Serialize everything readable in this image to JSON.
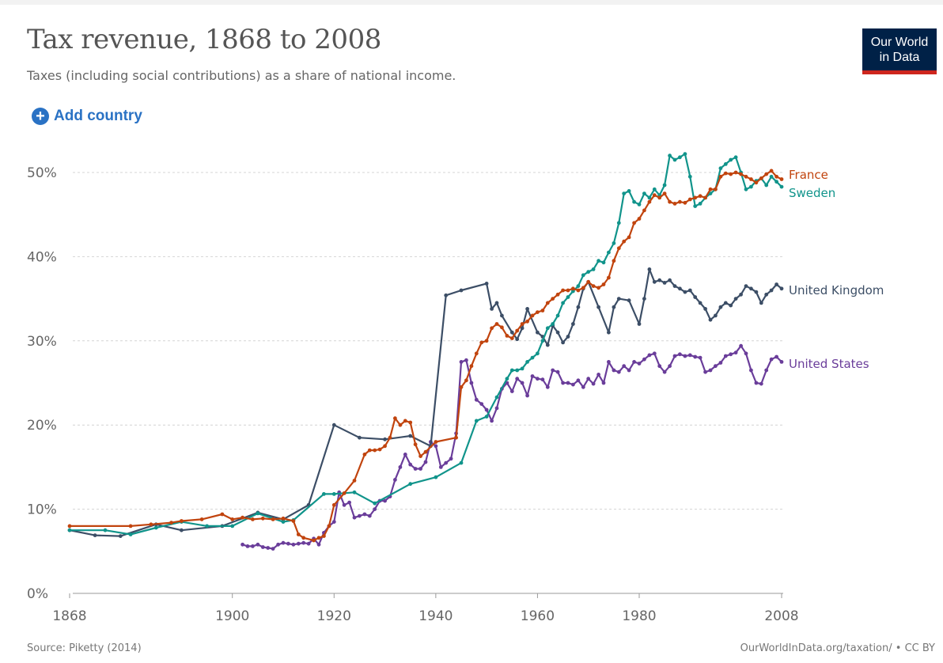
{
  "header": {
    "title": "Tax revenue, 1868 to 2008",
    "subtitle": "Taxes (including social contributions) as a share of national income.",
    "logo_line1": "Our World",
    "logo_line2": "in Data"
  },
  "controls": {
    "add_country_label": "Add country",
    "add_icon": "plus-circle-icon"
  },
  "footer": {
    "source": "Source: Piketty (2014)",
    "link": "OurWorldInData.org/taxation/ • CC BY"
  },
  "colors": {
    "France": "#c1440e",
    "Sweden": "#11948b",
    "United Kingdom": "#3c4e66",
    "United States": "#6a3d9a",
    "brand_bg": "#002147",
    "brand_accent": "#ce261e",
    "link": "#2a72c4"
  },
  "chart_data": {
    "type": "line",
    "title": "Tax revenue, 1868 to 2008",
    "subtitle": "Taxes (including social contributions) as a share of national income.",
    "xlabel": "",
    "ylabel": "",
    "xlim": [
      1866,
      2012
    ],
    "ylim": [
      0,
      50
    ],
    "x_ticks": [
      1868,
      1900,
      1920,
      1940,
      1960,
      1980,
      2008
    ],
    "y_ticks": [
      0,
      10,
      20,
      30,
      40,
      50
    ],
    "y_tick_labels": [
      "0%",
      "10%",
      "20%",
      "30%",
      "40%",
      "50%"
    ],
    "grid": "horizontal dotted",
    "legend": "line-end labels on right",
    "series": [
      {
        "name": "France",
        "x": [
          1868,
          1880,
          1884,
          1888,
          1890,
          1894,
          1898,
          1900,
          1902,
          1904,
          1906,
          1908,
          1910,
          1912,
          1913,
          1914,
          1916,
          1917,
          1918,
          1919,
          1920,
          1922,
          1924,
          1926,
          1927,
          1928,
          1929,
          1930,
          1931,
          1932,
          1933,
          1934,
          1935,
          1936,
          1937,
          1938,
          1940,
          1944,
          1945,
          1946,
          1947,
          1948,
          1949,
          1950,
          1951,
          1952,
          1953,
          1954,
          1955,
          1956,
          1957,
          1958,
          1959,
          1960,
          1961,
          1962,
          1963,
          1964,
          1965,
          1966,
          1967,
          1968,
          1969,
          1970,
          1971,
          1972,
          1973,
          1974,
          1975,
          1976,
          1977,
          1978,
          1979,
          1980,
          1981,
          1982,
          1983,
          1984,
          1985,
          1986,
          1987,
          1988,
          1989,
          1990,
          1991,
          1992,
          1993,
          1994,
          1995,
          1996,
          1997,
          1998,
          1999,
          2000,
          2001,
          2002,
          2003,
          2004,
          2005,
          2006,
          2007,
          2008
        ],
        "y": [
          8.0,
          8.0,
          8.2,
          8.4,
          8.6,
          8.8,
          9.4,
          8.8,
          9.0,
          8.8,
          8.9,
          8.8,
          8.9,
          8.6,
          7.0,
          6.6,
          6.3,
          6.6,
          6.8,
          8.0,
          10.5,
          11.9,
          13.4,
          16.5,
          17.0,
          17.0,
          17.1,
          17.5,
          18.5,
          20.8,
          20.0,
          20.5,
          20.3,
          17.7,
          16.3,
          16.8,
          18.0,
          18.5,
          24.5,
          25.3,
          27.0,
          28.5,
          29.8,
          30.0,
          31.5,
          32.0,
          31.6,
          30.6,
          30.3,
          31.2,
          32.0,
          32.3,
          33.0,
          33.4,
          33.6,
          34.5,
          35.0,
          35.5,
          36.0,
          36.0,
          36.2,
          36.0,
          36.3,
          37.0,
          36.5,
          36.3,
          36.7,
          37.5,
          39.5,
          41.0,
          41.8,
          42.3,
          44.0,
          44.5,
          45.5,
          46.5,
          47.3,
          47.0,
          47.5,
          46.5,
          46.3,
          46.5,
          46.4,
          46.8,
          47.0,
          47.2,
          47.0,
          48.0,
          48.0,
          49.5,
          49.9,
          49.8,
          50.0,
          49.8,
          49.5,
          49.2,
          48.8,
          49.3,
          49.8,
          50.2,
          49.5,
          49.2
        ]
      },
      {
        "name": "Sweden",
        "x": [
          1868,
          1875,
          1880,
          1885,
          1890,
          1895,
          1900,
          1905,
          1910,
          1912,
          1918,
          1920,
          1924,
          1928,
          1935,
          1940,
          1945,
          1948,
          1950,
          1952,
          1954,
          1955,
          1956,
          1957,
          1958,
          1959,
          1960,
          1961,
          1962,
          1963,
          1964,
          1965,
          1966,
          1967,
          1968,
          1969,
          1970,
          1971,
          1972,
          1973,
          1974,
          1975,
          1976,
          1977,
          1978,
          1979,
          1980,
          1981,
          1982,
          1983,
          1984,
          1985,
          1986,
          1987,
          1988,
          1989,
          1990,
          1991,
          1992,
          1993,
          1994,
          1995,
          1996,
          1997,
          1998,
          1999,
          2000,
          2001,
          2002,
          2003,
          2004,
          2005,
          2006,
          2007,
          2008
        ],
        "y": [
          7.5,
          7.5,
          7.0,
          7.8,
          8.5,
          8.0,
          8.0,
          9.5,
          8.5,
          8.7,
          11.8,
          11.8,
          12.0,
          10.7,
          13.0,
          13.8,
          15.5,
          20.5,
          21.0,
          23.3,
          25.5,
          26.5,
          26.5,
          26.7,
          27.5,
          28.0,
          28.5,
          30.0,
          31.5,
          32.0,
          33.0,
          34.5,
          35.2,
          35.9,
          36.5,
          37.8,
          38.2,
          38.5,
          39.5,
          39.3,
          40.5,
          41.6,
          44.0,
          47.5,
          47.8,
          46.5,
          46.2,
          47.5,
          47.0,
          48.0,
          47.3,
          48.5,
          52.0,
          51.5,
          51.8,
          52.2,
          49.5,
          46.0,
          46.3,
          47.0,
          47.5,
          48.0,
          50.5,
          51.0,
          51.5,
          51.8,
          50.0,
          48.0,
          48.3,
          49.0,
          49.3,
          48.5,
          49.5,
          48.9,
          48.3
        ]
      },
      {
        "name": "United Kingdom",
        "x": [
          1868,
          1873,
          1878,
          1885,
          1890,
          1898,
          1905,
          1910,
          1915,
          1920,
          1925,
          1930,
          1935,
          1939,
          1942,
          1945,
          1950,
          1951,
          1952,
          1953,
          1955,
          1956,
          1957,
          1958,
          1960,
          1961,
          1962,
          1963,
          1964,
          1965,
          1966,
          1967,
          1968,
          1969,
          1970,
          1972,
          1974,
          1975,
          1976,
          1978,
          1980,
          1981,
          1982,
          1983,
          1984,
          1985,
          1986,
          1987,
          1988,
          1989,
          1990,
          1991,
          1992,
          1993,
          1994,
          1995,
          1996,
          1997,
          1998,
          1999,
          2000,
          2001,
          2002,
          2003,
          2004,
          2005,
          2006,
          2007,
          2008
        ],
        "y": [
          7.5,
          6.9,
          6.8,
          8.2,
          7.5,
          8.0,
          9.6,
          8.8,
          10.5,
          20.0,
          18.5,
          18.3,
          18.7,
          17.5,
          35.4,
          36.0,
          36.8,
          33.8,
          34.5,
          33.0,
          31.0,
          30.2,
          31.5,
          33.8,
          31.0,
          30.5,
          29.5,
          31.8,
          31.0,
          29.8,
          30.5,
          32.0,
          34.0,
          36.2,
          37.0,
          34.0,
          31.0,
          34.0,
          35.0,
          34.8,
          32.0,
          35.0,
          38.5,
          37.0,
          37.2,
          36.9,
          37.2,
          36.5,
          36.2,
          35.8,
          36.0,
          35.2,
          34.5,
          33.8,
          32.5,
          33.0,
          34.0,
          34.5,
          34.2,
          35.0,
          35.5,
          36.5,
          36.2,
          35.8,
          34.5,
          35.5,
          36.0,
          36.7,
          36.2
        ]
      },
      {
        "name": "United States",
        "x": [
          1902,
          1903,
          1904,
          1905,
          1906,
          1907,
          1908,
          1909,
          1910,
          1911,
          1912,
          1913,
          1914,
          1915,
          1916,
          1917,
          1918,
          1919,
          1920,
          1921,
          1922,
          1923,
          1924,
          1925,
          1926,
          1927,
          1928,
          1929,
          1930,
          1931,
          1932,
          1933,
          1934,
          1935,
          1936,
          1937,
          1938,
          1939,
          1940,
          1941,
          1942,
          1943,
          1944,
          1945,
          1946,
          1947,
          1948,
          1949,
          1950,
          1951,
          1952,
          1953,
          1954,
          1955,
          1956,
          1957,
          1958,
          1959,
          1960,
          1961,
          1962,
          1963,
          1964,
          1965,
          1966,
          1967,
          1968,
          1969,
          1970,
          1971,
          1972,
          1973,
          1974,
          1975,
          1976,
          1977,
          1978,
          1979,
          1980,
          1981,
          1982,
          1983,
          1984,
          1985,
          1986,
          1987,
          1988,
          1989,
          1990,
          1991,
          1992,
          1993,
          1994,
          1995,
          1996,
          1997,
          1998,
          1999,
          2000,
          2001,
          2002,
          2003,
          2004,
          2005,
          2006,
          2007,
          2008
        ],
        "y": [
          5.8,
          5.6,
          5.6,
          5.8,
          5.5,
          5.4,
          5.3,
          5.8,
          6.0,
          5.9,
          5.8,
          5.9,
          6.0,
          5.9,
          6.5,
          5.8,
          7.2,
          8.0,
          8.5,
          12.0,
          10.5,
          10.8,
          9.0,
          9.2,
          9.4,
          9.2,
          10.0,
          11.0,
          11.0,
          11.5,
          13.5,
          15.0,
          16.5,
          15.3,
          14.8,
          14.8,
          15.6,
          18.0,
          17.5,
          15.0,
          15.5,
          16.0,
          19.0,
          27.5,
          27.7,
          25.0,
          23.0,
          22.5,
          21.8,
          20.5,
          22.0,
          24.3,
          25.0,
          24.0,
          25.5,
          25.0,
          23.5,
          25.8,
          25.5,
          25.4,
          24.5,
          26.5,
          26.3,
          25.0,
          25.0,
          24.8,
          25.3,
          24.5,
          25.5,
          24.9,
          26.0,
          25.0,
          27.5,
          26.5,
          26.3,
          27.0,
          26.5,
          27.5,
          27.3,
          27.8,
          28.3,
          28.5,
          27.0,
          26.3,
          27.0,
          28.2,
          28.4,
          28.2,
          28.3,
          28.1,
          28.0,
          26.3,
          26.5,
          27.0,
          27.4,
          28.2,
          28.4,
          28.6,
          29.4,
          28.5,
          26.5,
          25.0,
          24.9,
          26.5,
          27.8,
          28.1,
          27.5
        ]
      }
    ]
  }
}
